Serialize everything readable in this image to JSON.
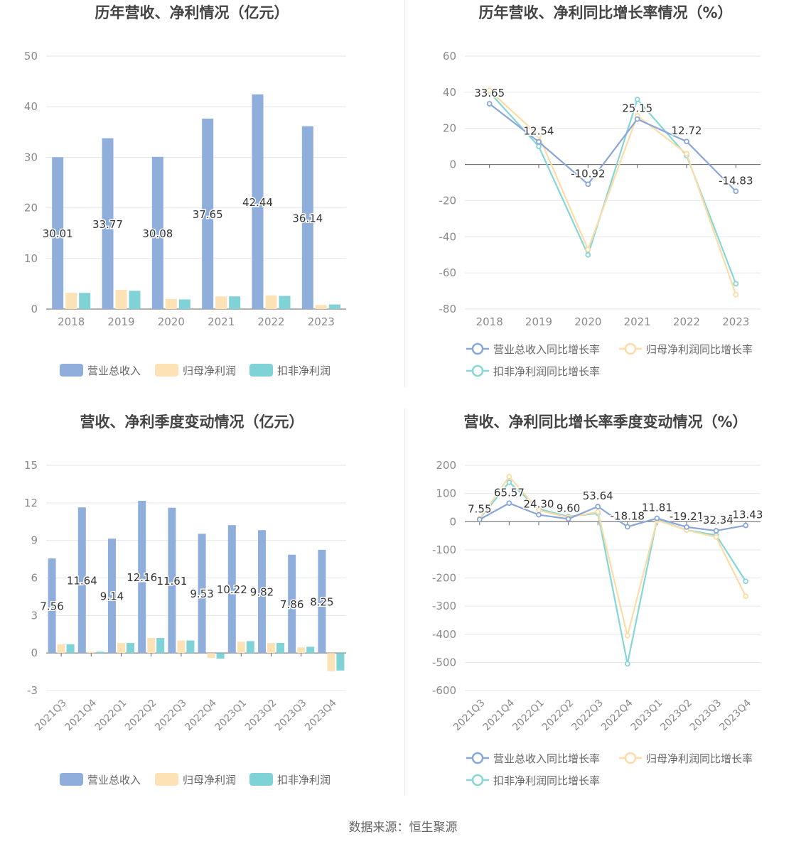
{
  "colors": {
    "revenue": "#8faedc",
    "netprofit": "#fde2b5",
    "deducted": "#7fd3d6",
    "revenue_line": "#8aa6d8",
    "netprofit_line": "#fcdca6",
    "deducted_line": "#86d6d6"
  },
  "legend": {
    "bar": [
      "营业总收入",
      "归母净利润",
      "扣非净利润"
    ],
    "line": [
      "营业总收入同比增长率",
      "归母净利润同比增长率",
      "扣非净利润同比增长率"
    ]
  },
  "source": "数据来源：恒生聚源",
  "chart_data": [
    {
      "id": "annual_bar",
      "type": "bar",
      "title": "历年营收、净利情况（亿元）",
      "categories": [
        "2018",
        "2019",
        "2020",
        "2021",
        "2022",
        "2023"
      ],
      "series": [
        {
          "name": "营业总收入",
          "values": [
            30.01,
            33.77,
            30.08,
            37.65,
            42.44,
            36.14
          ],
          "labels": [
            "30.01",
            "33.77",
            "30.08",
            "37.65",
            "42.44",
            "36.14"
          ]
        },
        {
          "name": "归母净利润",
          "values": [
            3.2,
            3.8,
            2.0,
            2.5,
            2.7,
            0.8
          ]
        },
        {
          "name": "扣非净利润",
          "values": [
            3.2,
            3.6,
            1.9,
            2.5,
            2.6,
            0.9
          ]
        }
      ],
      "ylim": [
        0,
        50
      ],
      "yticks": [
        0,
        10,
        20,
        30,
        40,
        50
      ],
      "grid": true,
      "legend": "bottom"
    },
    {
      "id": "annual_line",
      "type": "line",
      "title": "历年营收、净利同比增长率情况（%）",
      "categories": [
        "2018",
        "2019",
        "2020",
        "2021",
        "2022",
        "2023"
      ],
      "series": [
        {
          "name": "营业总收入同比增长率",
          "values": [
            33.65,
            12.54,
            -10.92,
            25.15,
            12.72,
            -14.83
          ],
          "labels": [
            "33.65",
            "12.54",
            "-10.92",
            "25.15",
            "12.72",
            "-14.83"
          ]
        },
        {
          "name": "归母净利润同比增长率",
          "values": [
            41,
            16,
            -47,
            27,
            6,
            -72
          ]
        },
        {
          "name": "扣非净利润同比增长率",
          "values": [
            40,
            10,
            -50,
            36,
            5,
            -66
          ]
        }
      ],
      "ylim": [
        -80,
        60
      ],
      "yticks": [
        -80,
        -60,
        -40,
        -20,
        0,
        20,
        40,
        60
      ],
      "grid": true,
      "legend": "bottom"
    },
    {
      "id": "quarter_bar",
      "type": "bar",
      "title": "营收、净利季度变动情况（亿元）",
      "categories": [
        "2021Q3",
        "2021Q4",
        "2022Q1",
        "2022Q2",
        "2022Q3",
        "2022Q4",
        "2023Q1",
        "2023Q2",
        "2023Q3",
        "2023Q4"
      ],
      "series": [
        {
          "name": "营业总收入",
          "values": [
            7.56,
            11.64,
            9.14,
            12.16,
            11.61,
            9.53,
            10.22,
            9.82,
            7.86,
            8.25
          ],
          "labels": [
            "7.56",
            "11.64",
            "9.14",
            "12.16",
            "11.61",
            "9.53",
            "10.22",
            "9.82",
            "7.86",
            "8.25"
          ]
        },
        {
          "name": "归母净利润",
          "values": [
            0.7,
            0.1,
            0.8,
            1.2,
            1.0,
            -0.4,
            0.9,
            0.8,
            0.45,
            -1.45
          ]
        },
        {
          "name": "扣非净利润",
          "values": [
            0.7,
            0.1,
            0.8,
            1.2,
            1.0,
            -0.45,
            0.95,
            0.8,
            0.5,
            -1.4
          ]
        }
      ],
      "ylim": [
        -3,
        15
      ],
      "yticks": [
        -3,
        0,
        3,
        6,
        9,
        12,
        15
      ],
      "grid": true,
      "legend": "bottom"
    },
    {
      "id": "quarter_line",
      "type": "line",
      "title": "营收、净利同比增长率季度变动情况（%）",
      "categories": [
        "2021Q3",
        "2021Q4",
        "2022Q1",
        "2022Q2",
        "2022Q3",
        "2022Q4",
        "2023Q1",
        "2023Q2",
        "2023Q3",
        "2023Q4"
      ],
      "series": [
        {
          "name": "营业总收入同比增长率",
          "values": [
            7.55,
            65.57,
            24.3,
            9.6,
            53.64,
            -18.18,
            11.81,
            -19.21,
            -32.34,
            -13.43
          ],
          "labels": [
            "7.55",
            "65.57",
            "24.30",
            "9.60",
            "53.64",
            "-18.18",
            "11.81",
            "-19.21",
            "-32.34",
            "-13.43"
          ]
        },
        {
          "name": "归母净利润同比增长率",
          "values": [
            10,
            160,
            40,
            15,
            35,
            -405,
            5,
            -30,
            -55,
            -265
          ]
        },
        {
          "name": "扣非净利润同比增长率",
          "values": [
            10,
            140,
            45,
            18,
            30,
            -505,
            8,
            -30,
            -48,
            -212
          ]
        }
      ],
      "ylim": [
        -600,
        200
      ],
      "yticks": [
        -600,
        -500,
        -400,
        -300,
        -200,
        -100,
        0,
        100,
        200
      ],
      "grid": true,
      "legend": "bottom"
    }
  ]
}
